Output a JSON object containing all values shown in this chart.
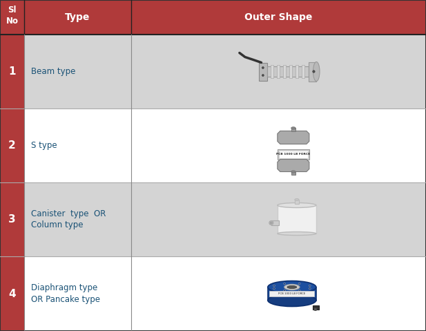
{
  "header_bg": "#b03a3a",
  "header_text_color": "#ffffff",
  "row_bg_odd": "#d4d4d4",
  "row_bg_even": "#ffffff",
  "left_col_bg": "#b03a3a",
  "type_text_color": "#1a5276",
  "col1_header": "Sl\nNo",
  "col2_header": "Type",
  "col3_header": "Outer Shape",
  "rows": [
    {
      "sl": "1",
      "type": "Beam type",
      "shape_desc": "beam"
    },
    {
      "sl": "2",
      "type": "S type",
      "shape_desc": "s_type"
    },
    {
      "sl": "3",
      "type": "Canister  type  OR\nColumn type",
      "shape_desc": "canister"
    },
    {
      "sl": "4",
      "type": "Diaphragm type\nOR Pancake type",
      "shape_desc": "pancake"
    }
  ],
  "fig_width": 6.17,
  "fig_height": 4.79,
  "dpi": 100
}
